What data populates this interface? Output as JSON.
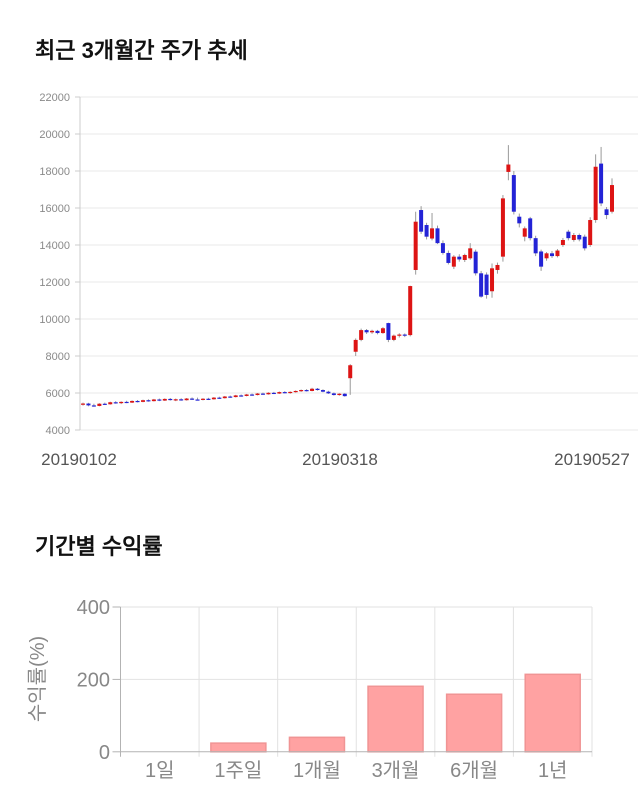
{
  "section1": {
    "title": "최근 3개월간 주가 추세"
  },
  "section2": {
    "title": "기간별 수익률"
  },
  "chart_data": [
    {
      "type": "candlestick",
      "title": "최근 3개월간 주가 추세",
      "x_tick_labels": [
        "20190102",
        "20190318",
        "20190527"
      ],
      "y_ticks": [
        4000,
        6000,
        8000,
        10000,
        12000,
        14000,
        16000,
        18000,
        20000,
        22000
      ],
      "ylim": [
        4000,
        22000
      ],
      "grid": true,
      "colors": {
        "up": "#dd1414",
        "down": "#2323d6",
        "wick": "#999999",
        "grid": "#e8e8e8",
        "axis": "#cccccc",
        "y_tick_text": "#8a8a8a",
        "x_tick_text": "#555555"
      },
      "candles_format": "[open, high, low, close]",
      "candles": [
        [
          5380,
          5480,
          5320,
          5430
        ],
        [
          5430,
          5470,
          5280,
          5330
        ],
        [
          5330,
          5420,
          5260,
          5300
        ],
        [
          5300,
          5450,
          5280,
          5420
        ],
        [
          5420,
          5480,
          5350,
          5390
        ],
        [
          5390,
          5530,
          5370,
          5500
        ],
        [
          5500,
          5560,
          5420,
          5450
        ],
        [
          5450,
          5550,
          5400,
          5520
        ],
        [
          5520,
          5580,
          5450,
          5480
        ],
        [
          5480,
          5600,
          5460,
          5570
        ],
        [
          5570,
          5620,
          5490,
          5520
        ],
        [
          5520,
          5640,
          5500,
          5610
        ],
        [
          5610,
          5660,
          5530,
          5560
        ],
        [
          5560,
          5680,
          5540,
          5650
        ],
        [
          5650,
          5700,
          5560,
          5590
        ],
        [
          5590,
          5710,
          5570,
          5680
        ],
        [
          5680,
          5730,
          5590,
          5620
        ],
        [
          5620,
          5700,
          5560,
          5660
        ],
        [
          5660,
          5720,
          5580,
          5610
        ],
        [
          5610,
          5730,
          5590,
          5700
        ],
        [
          5700,
          5760,
          5620,
          5650
        ],
        [
          5650,
          5750,
          5600,
          5630
        ],
        [
          5630,
          5720,
          5600,
          5690
        ],
        [
          5690,
          5740,
          5620,
          5660
        ],
        [
          5660,
          5780,
          5640,
          5750
        ],
        [
          5750,
          5800,
          5680,
          5720
        ],
        [
          5720,
          5840,
          5700,
          5810
        ],
        [
          5810,
          5860,
          5740,
          5780
        ],
        [
          5780,
          5900,
          5760,
          5870
        ],
        [
          5870,
          5920,
          5800,
          5840
        ],
        [
          5840,
          5950,
          5820,
          5920
        ],
        [
          5920,
          5970,
          5850,
          5890
        ],
        [
          5890,
          6000,
          5870,
          5970
        ],
        [
          5970,
          6020,
          5900,
          5930
        ],
        [
          5930,
          6040,
          5910,
          6010
        ],
        [
          6010,
          6060,
          5940,
          5970
        ],
        [
          5970,
          6080,
          5950,
          6050
        ],
        [
          6050,
          6100,
          5980,
          6010
        ],
        [
          6010,
          6090,
          5960,
          6060
        ],
        [
          6060,
          6140,
          6020,
          6110
        ],
        [
          6110,
          6190,
          6060,
          6160
        ],
        [
          6160,
          6210,
          6080,
          6110
        ],
        [
          6110,
          6280,
          6090,
          6230
        ],
        [
          6230,
          6270,
          6130,
          6160
        ],
        [
          6160,
          6200,
          6040,
          6070
        ],
        [
          6070,
          6120,
          5950,
          5980
        ],
        [
          5980,
          6030,
          5860,
          5890
        ],
        [
          5890,
          5990,
          5850,
          5960
        ],
        [
          5960,
          5990,
          5800,
          5830
        ],
        [
          6800,
          7560,
          5900,
          7500
        ],
        [
          8230,
          8950,
          8000,
          8870
        ],
        [
          8870,
          9480,
          8800,
          9400
        ],
        [
          9400,
          9460,
          9190,
          9280
        ],
        [
          9280,
          9420,
          9200,
          9360
        ],
        [
          9360,
          9410,
          9170,
          9240
        ],
        [
          9240,
          9560,
          9200,
          9500
        ],
        [
          9780,
          9800,
          8750,
          8870
        ],
        [
          8870,
          9160,
          8800,
          9100
        ],
        [
          9100,
          9230,
          9000,
          9160
        ],
        [
          9160,
          9220,
          9020,
          9130
        ],
        [
          9130,
          11800,
          9060,
          11780
        ],
        [
          12650,
          15800,
          12400,
          15260
        ],
        [
          15890,
          16100,
          14600,
          14720
        ],
        [
          15080,
          15200,
          14300,
          14450
        ],
        [
          14350,
          15730,
          14250,
          14900
        ],
        [
          14900,
          15050,
          14050,
          14100
        ],
        [
          14100,
          14250,
          13480,
          13570
        ],
        [
          13570,
          13700,
          12950,
          13030
        ],
        [
          12830,
          13450,
          12700,
          13370
        ],
        [
          13370,
          13500,
          13100,
          13220
        ],
        [
          13190,
          13530,
          13080,
          13460
        ],
        [
          13280,
          14100,
          13200,
          13820
        ],
        [
          13640,
          13750,
          12350,
          12470
        ],
        [
          12470,
          12600,
          11150,
          11210
        ],
        [
          12400,
          12520,
          11100,
          11300
        ],
        [
          11500,
          13000,
          11150,
          12740
        ],
        [
          12650,
          13050,
          12450,
          12920
        ],
        [
          13370,
          16700,
          13100,
          16520
        ],
        [
          17950,
          19400,
          17500,
          18350
        ],
        [
          17780,
          18000,
          15650,
          15800
        ],
        [
          15530,
          15700,
          14950,
          15170
        ],
        [
          14450,
          15000,
          14200,
          14900
        ],
        [
          15440,
          15520,
          14250,
          14370
        ],
        [
          14370,
          14500,
          13400,
          13550
        ],
        [
          13650,
          13750,
          12600,
          12830
        ],
        [
          13280,
          13620,
          13150,
          13550
        ],
        [
          13550,
          13680,
          13300,
          13400
        ],
        [
          13400,
          13780,
          13330,
          13700
        ],
        [
          14000,
          14380,
          13900,
          14270
        ],
        [
          14720,
          14820,
          14250,
          14370
        ],
        [
          14270,
          14650,
          14180,
          14540
        ],
        [
          14540,
          14620,
          14200,
          14300
        ],
        [
          14450,
          14560,
          13700,
          13820
        ],
        [
          14000,
          15500,
          13900,
          15350
        ],
        [
          15350,
          18900,
          15200,
          18230
        ],
        [
          18400,
          19300,
          16100,
          16250
        ],
        [
          15930,
          16050,
          15400,
          15620
        ],
        [
          15800,
          17600,
          15700,
          17240
        ]
      ]
    },
    {
      "type": "bar",
      "title": "기간별 수익률",
      "categories": [
        "1일",
        "1주일",
        "1개월",
        "3개월",
        "6개월",
        "1년"
      ],
      "values": [
        0,
        24,
        40,
        181,
        159,
        214
      ],
      "ylabel": "수익률(%)",
      "xlabel": "",
      "y_ticks": [
        0,
        200,
        400
      ],
      "ylim": [
        0,
        400
      ],
      "grid": true,
      "legend": "none",
      "colors": {
        "bar_fill": "#ffa2a2",
        "bar_border": "#f09494",
        "grid": "#e2e2e2",
        "axis": "#b3b3b3",
        "tick_text": "#888888"
      }
    }
  ]
}
